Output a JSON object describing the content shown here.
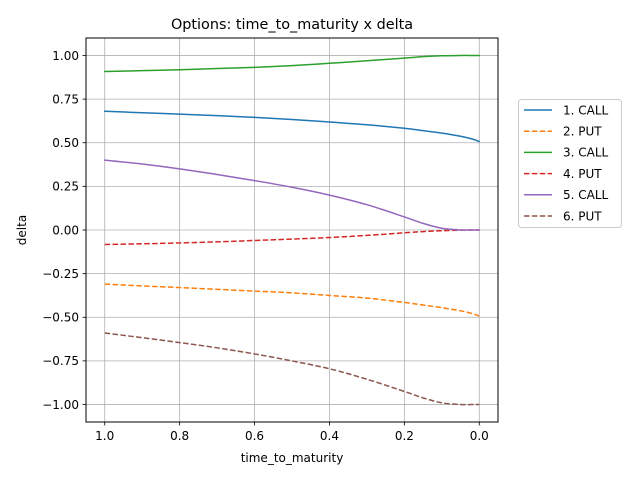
{
  "chart_data": {
    "type": "line",
    "title": "Options: time_to_maturity x delta",
    "xlabel": "time_to_maturity",
    "ylabel": "delta",
    "xlim": [
      1.05,
      -0.05
    ],
    "ylim": [
      -1.1,
      1.1
    ],
    "x_inverted": true,
    "grid": true,
    "legend_position": "outside-right",
    "xticks": [
      1.0,
      0.8,
      0.6,
      0.4,
      0.2,
      0.0
    ],
    "xtick_labels": [
      "1.0",
      "0.8",
      "0.6",
      "0.4",
      "0.2",
      "0.0"
    ],
    "yticks": [
      1.0,
      0.75,
      0.5,
      0.25,
      0.0,
      -0.25,
      -0.5,
      -0.75,
      -1.0
    ],
    "ytick_labels": [
      "1.00",
      "0.75",
      "0.50",
      "0.25",
      "0.00",
      "−0.25",
      "−0.50",
      "−0.75",
      "−1.00"
    ],
    "x": [
      1.0,
      0.9,
      0.8,
      0.7,
      0.6,
      0.5,
      0.4,
      0.3,
      0.2,
      0.15,
      0.1,
      0.05,
      0.02,
      0.0
    ],
    "series": [
      {
        "name": "1. CALL",
        "color": "#1f77b4",
        "dash": "solid",
        "values": [
          0.68,
          0.672,
          0.664,
          0.655,
          0.645,
          0.633,
          0.619,
          0.603,
          0.583,
          0.569,
          0.555,
          0.537,
          0.522,
          0.507
        ]
      },
      {
        "name": "2. PUT",
        "color": "#ff7f0e",
        "dash": "dashed",
        "values": [
          -0.31,
          -0.32,
          -0.33,
          -0.34,
          -0.35,
          -0.36,
          -0.375,
          -0.39,
          -0.415,
          -0.43,
          -0.445,
          -0.463,
          -0.478,
          -0.493
        ]
      },
      {
        "name": "3. CALL",
        "color": "#2ca02c",
        "dash": "solid",
        "values": [
          0.908,
          0.913,
          0.918,
          0.925,
          0.932,
          0.942,
          0.955,
          0.97,
          0.985,
          0.993,
          0.998,
          1.0,
          1.0,
          1.0
        ]
      },
      {
        "name": "4. PUT",
        "color": "#d62728",
        "dash": "dashed",
        "values": [
          -0.083,
          -0.079,
          -0.074,
          -0.068,
          -0.06,
          -0.052,
          -0.043,
          -0.031,
          -0.016,
          -0.009,
          -0.004,
          -0.001,
          0.0,
          0.0
        ]
      },
      {
        "name": "5. CALL",
        "color": "#9467bd",
        "dash": "solid",
        "values": [
          0.4,
          0.378,
          0.35,
          0.318,
          0.283,
          0.245,
          0.2,
          0.145,
          0.075,
          0.038,
          0.01,
          0.0,
          0.0,
          0.0
        ]
      },
      {
        "name": "6. PUT",
        "color": "#8c564b",
        "dash": "dashed",
        "values": [
          -0.59,
          -0.617,
          -0.645,
          -0.675,
          -0.71,
          -0.75,
          -0.795,
          -0.855,
          -0.925,
          -0.962,
          -0.99,
          -1.0,
          -1.0,
          -1.0
        ]
      }
    ]
  }
}
